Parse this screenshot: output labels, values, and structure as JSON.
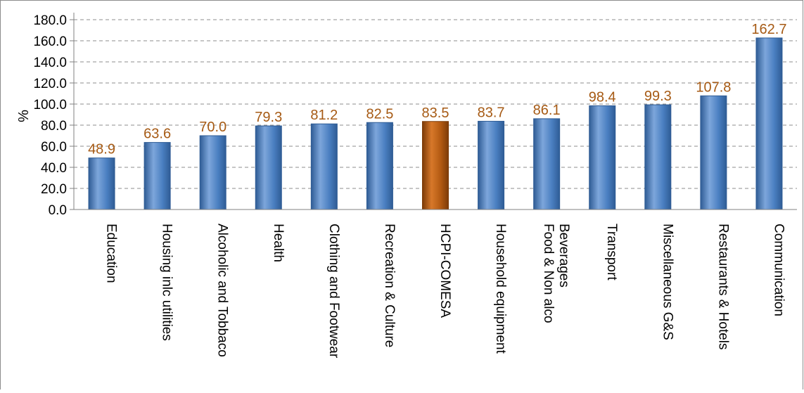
{
  "chart_data": {
    "type": "bar",
    "title": "",
    "xlabel": "",
    "ylabel": "%",
    "ylim": [
      0,
      180
    ],
    "ytick_step": 20,
    "ytick_labels": [
      "0.0",
      "20.0",
      "40.0",
      "60.0",
      "80.0",
      "100.0",
      "120.0",
      "140.0",
      "160.0",
      "180.0"
    ],
    "grid": "horizontal dashed",
    "legend": "none",
    "categories": [
      [
        "Education"
      ],
      [
        "Housing inlc utilities"
      ],
      [
        "Alcoholic and Tobbaco"
      ],
      [
        "Health"
      ],
      [
        "Clothing and Footwear"
      ],
      [
        "Recreation & Culture"
      ],
      [
        "HCPI-COMESA"
      ],
      [
        "Household equipment"
      ],
      [
        "Food & Non alco",
        "Beverages"
      ],
      [
        "Transport"
      ],
      [
        "Miscellaneous  G&S"
      ],
      [
        "Restaurants & Hotels"
      ],
      [
        "Communication"
      ]
    ],
    "values": [
      48.9,
      63.6,
      70.0,
      79.3,
      81.2,
      82.5,
      83.5,
      83.7,
      86.1,
      98.4,
      99.3,
      107.8,
      162.7
    ],
    "value_labels": [
      "48.9",
      "63.6",
      "70.0",
      "79.3",
      "81.2",
      "82.5",
      "83.5",
      "83.7",
      "86.1",
      "98.4",
      "99.3",
      "107.8",
      "162.7"
    ],
    "highlight_index": 6,
    "colors": {
      "bar": "#4a7fc1",
      "bar_light": "#7da6db",
      "bar_dark": "#2f5c95",
      "highlight": "#b35a12",
      "highlight_light": "#d7782a",
      "highlight_dark": "#7c3b08",
      "value_label": "#a65a14",
      "axis": "#808080",
      "grid": "#8c8c8c",
      "text": "#000000",
      "frame": "#8c8c8c"
    }
  }
}
